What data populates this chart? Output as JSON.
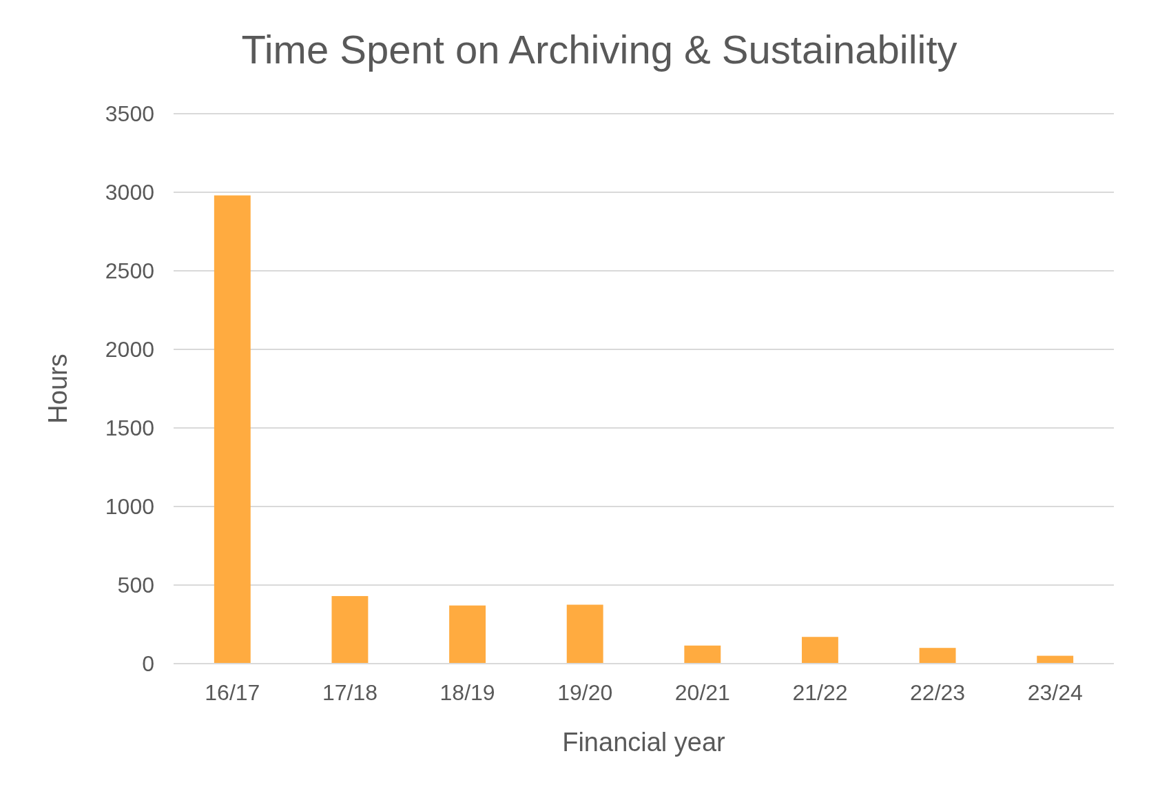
{
  "chart_data": {
    "type": "bar",
    "title": "Time Spent on Archiving & Sustainability",
    "xlabel": "Financial year",
    "ylabel": "Hours",
    "categories": [
      "16/17",
      "17/18",
      "18/19",
      "19/20",
      "20/21",
      "21/22",
      "22/23",
      "23/24"
    ],
    "values": [
      2980,
      430,
      370,
      375,
      115,
      170,
      100,
      50
    ],
    "color": "#ffab40",
    "ylim": [
      0,
      3500
    ],
    "yticks": [
      0,
      500,
      1000,
      1500,
      2000,
      2500,
      3000,
      3500
    ],
    "grid": "y"
  }
}
